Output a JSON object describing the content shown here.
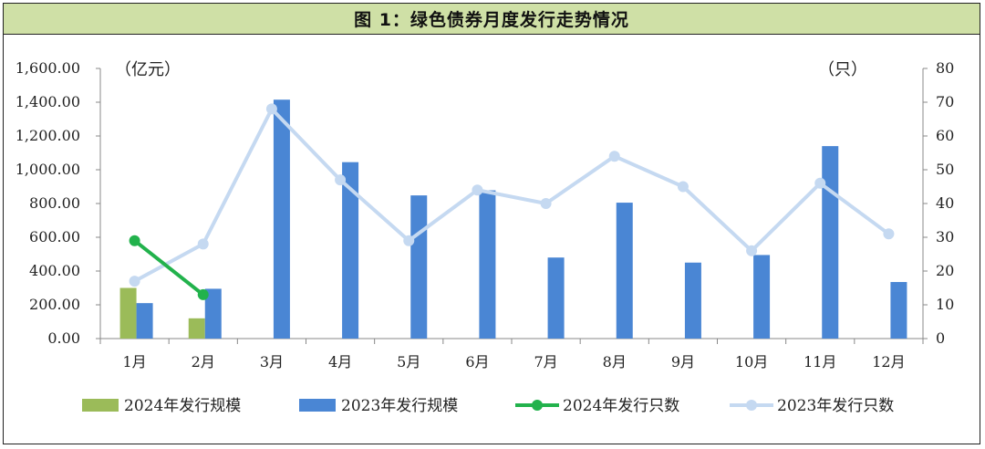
{
  "chart_data": {
    "type": "bar",
    "title": "图 1：绿色债券月度发行走势情况",
    "categories": [
      "1月",
      "2月",
      "3月",
      "4月",
      "5月",
      "6月",
      "7月",
      "8月",
      "9月",
      "10月",
      "11月",
      "12月"
    ],
    "left_axis": {
      "unit_label": "（亿元）",
      "ylim": [
        0,
        1600
      ],
      "ticks": [
        "0.00",
        "200.00",
        "400.00",
        "600.00",
        "800.00",
        "1,000.00",
        "1,200.00",
        "1,400.00",
        "1,600.00"
      ]
    },
    "right_axis": {
      "unit_label": "（只）",
      "ylim": [
        0,
        80
      ],
      "ticks": [
        "0",
        "10",
        "20",
        "30",
        "40",
        "50",
        "60",
        "70",
        "80"
      ]
    },
    "series": [
      {
        "name": "2024年发行规模",
        "kind": "bar",
        "axis": "left",
        "color": "#9bbb59",
        "values": [
          300,
          120,
          null,
          null,
          null,
          null,
          null,
          null,
          null,
          null,
          null,
          null
        ]
      },
      {
        "name": "2023年发行规模",
        "kind": "bar",
        "axis": "left",
        "color": "#4a86d4",
        "values": [
          210,
          295,
          1415,
          1045,
          848,
          878,
          480,
          805,
          450,
          495,
          1140,
          335
        ]
      },
      {
        "name": "2024年发行只数",
        "kind": "line",
        "axis": "right",
        "color": "#22b24c",
        "values": [
          29,
          13,
          null,
          null,
          null,
          null,
          null,
          null,
          null,
          null,
          null,
          null
        ]
      },
      {
        "name": "2023年发行只数",
        "kind": "line",
        "axis": "right",
        "color": "#c5d9f1",
        "values": [
          17,
          28,
          68,
          47,
          29,
          44,
          40,
          54,
          45,
          26,
          46,
          31
        ]
      }
    ],
    "grid": false,
    "legend_position": "bottom"
  }
}
